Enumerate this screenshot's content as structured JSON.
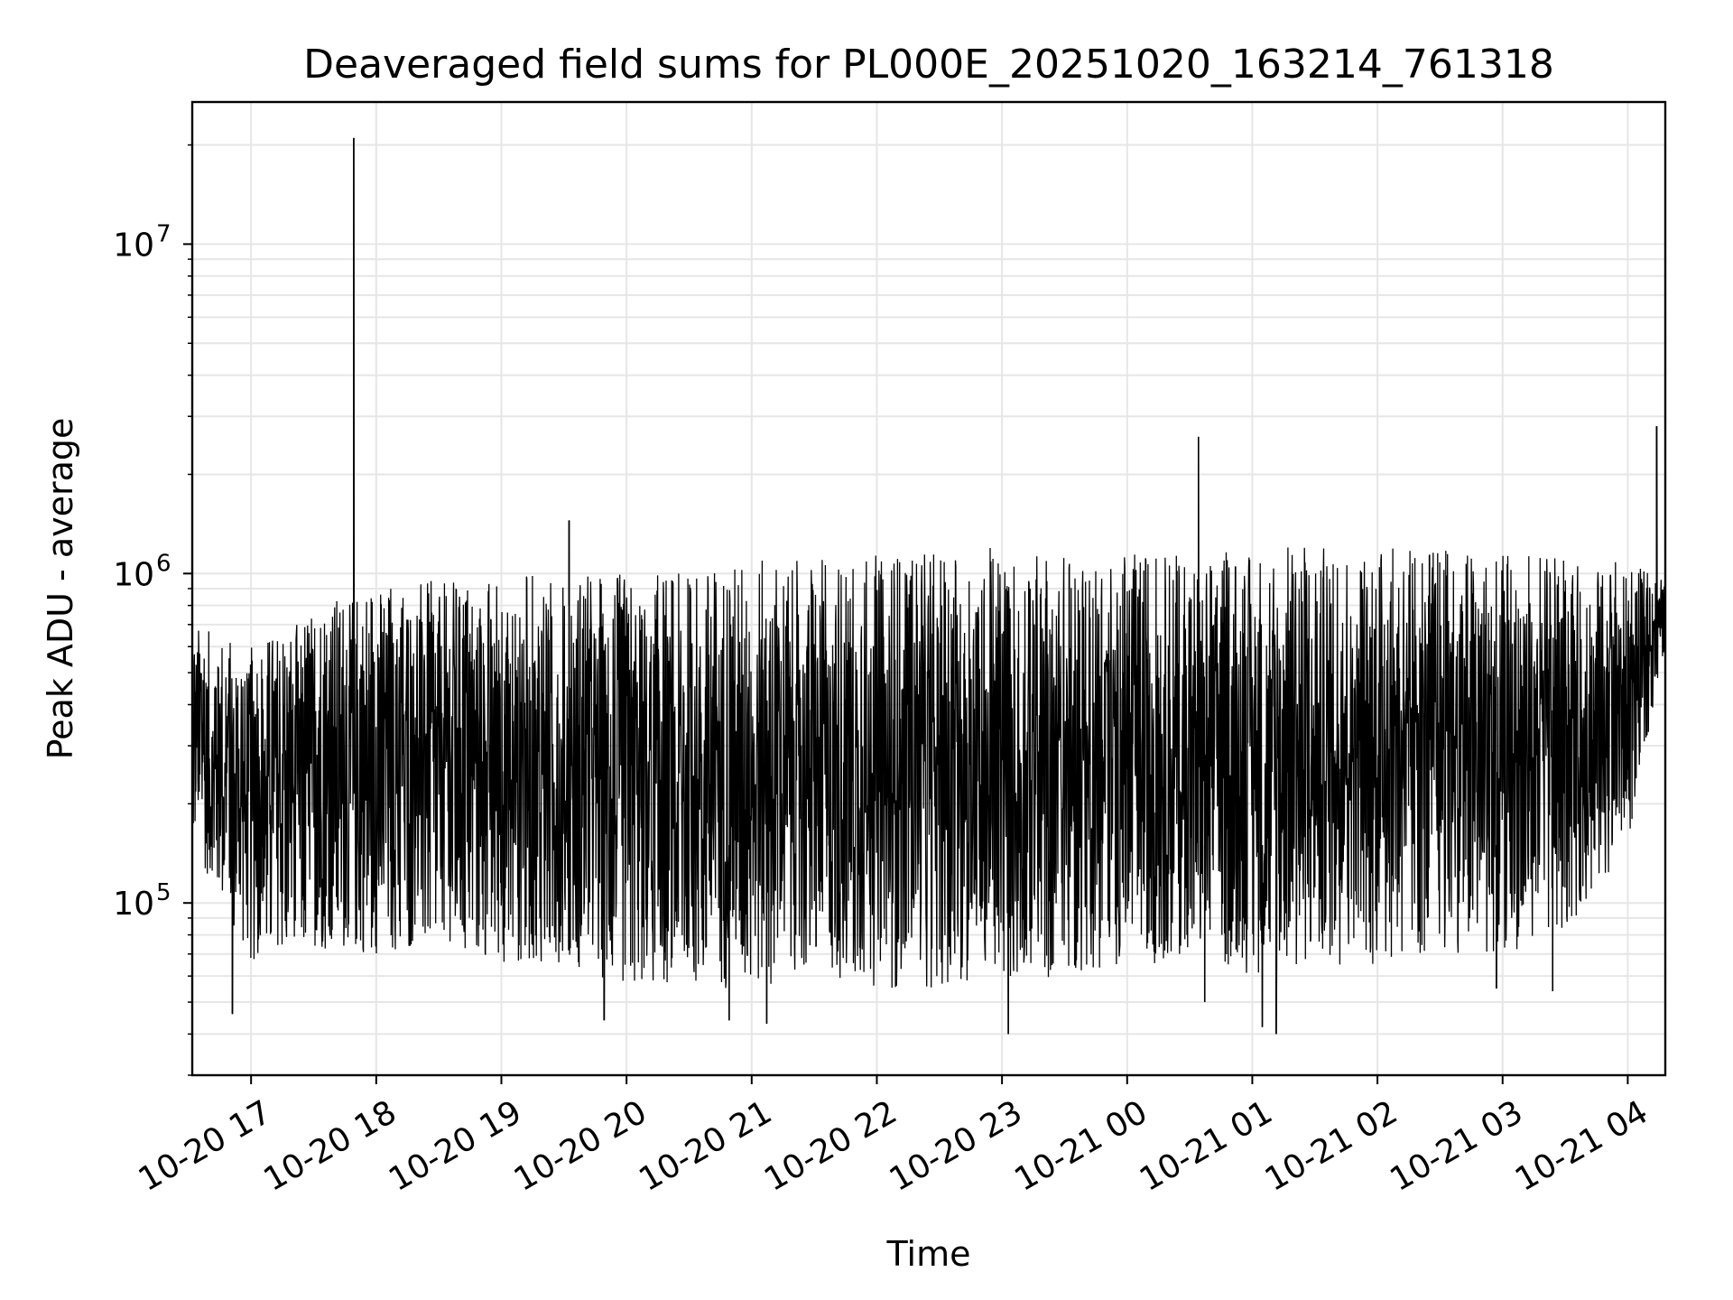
{
  "chart_data": {
    "type": "line",
    "title": "Deaveraged field sums for PL000E_20251020_163214_761318",
    "xlabel": "Time",
    "ylabel": "Peak ADU - average",
    "yscale": "log",
    "ylim": [
      30000,
      27000000
    ],
    "xlim_hours": [
      16.53,
      28.3
    ],
    "grid": true,
    "line_color": "#000000",
    "grid_color": "#e6e6e6",
    "x_ticks": [
      {
        "label": "10-20 17",
        "hour": 17
      },
      {
        "label": "10-20 18",
        "hour": 18
      },
      {
        "label": "10-20 19",
        "hour": 19
      },
      {
        "label": "10-20 20",
        "hour": 20
      },
      {
        "label": "10-20 21",
        "hour": 21
      },
      {
        "label": "10-20 22",
        "hour": 22
      },
      {
        "label": "10-20 23",
        "hour": 23
      },
      {
        "label": "10-21 00",
        "hour": 24
      },
      {
        "label": "10-21 01",
        "hour": 25
      },
      {
        "label": "10-21 02",
        "hour": 26
      },
      {
        "label": "10-21 03",
        "hour": 27
      },
      {
        "label": "10-21 04",
        "hour": 28
      }
    ],
    "y_ticks": [
      {
        "base": "10",
        "exp": "5",
        "value": 100000
      },
      {
        "base": "10",
        "exp": "6",
        "value": 1000000
      },
      {
        "base": "10",
        "exp": "7",
        "value": 10000000
      }
    ],
    "series": [
      {
        "name": "field sums",
        "envelope": [
          {
            "hour": 16.53,
            "low": 150000,
            "high": 700000
          },
          {
            "hour": 17.0,
            "low": 65000,
            "high": 600000
          },
          {
            "hour": 17.5,
            "low": 70000,
            "high": 800000
          },
          {
            "hour": 18.0,
            "low": 70000,
            "high": 950000
          },
          {
            "hour": 18.5,
            "low": 70000,
            "high": 950000
          },
          {
            "hour": 19.0,
            "low": 65000,
            "high": 1000000
          },
          {
            "hour": 19.5,
            "low": 65000,
            "high": 1000000
          },
          {
            "hour": 20.0,
            "low": 55000,
            "high": 1000000
          },
          {
            "hour": 20.5,
            "low": 55000,
            "high": 1000000
          },
          {
            "hour": 21.0,
            "low": 55000,
            "high": 1100000
          },
          {
            "hour": 21.5,
            "low": 60000,
            "high": 1100000
          },
          {
            "hour": 22.0,
            "low": 55000,
            "high": 1150000
          },
          {
            "hour": 22.5,
            "low": 55000,
            "high": 1200000
          },
          {
            "hour": 23.0,
            "low": 55000,
            "high": 1200000
          },
          {
            "hour": 23.5,
            "low": 60000,
            "high": 1150000
          },
          {
            "hour": 24.0,
            "low": 65000,
            "high": 1150000
          },
          {
            "hour": 24.5,
            "low": 65000,
            "high": 1150000
          },
          {
            "hour": 25.0,
            "low": 60000,
            "high": 1200000
          },
          {
            "hour": 25.5,
            "low": 65000,
            "high": 1250000
          },
          {
            "hour": 26.0,
            "low": 65000,
            "high": 1200000
          },
          {
            "hour": 26.5,
            "low": 70000,
            "high": 1200000
          },
          {
            "hour": 27.0,
            "low": 70000,
            "high": 1150000
          },
          {
            "hour": 27.5,
            "low": 80000,
            "high": 1150000
          },
          {
            "hour": 28.0,
            "low": 150000,
            "high": 1100000
          },
          {
            "hour": 28.3,
            "low": 600000,
            "high": 950000
          }
        ],
        "spikes": [
          {
            "hour": 17.82,
            "value": 21000000
          },
          {
            "hour": 19.54,
            "value": 1450000
          },
          {
            "hour": 24.57,
            "value": 2600000
          },
          {
            "hour": 28.23,
            "value": 2800000
          }
        ],
        "dips": [
          {
            "hour": 16.85,
            "value": 46000
          },
          {
            "hour": 19.82,
            "value": 44000
          },
          {
            "hour": 20.82,
            "value": 44000
          },
          {
            "hour": 21.12,
            "value": 43000
          },
          {
            "hour": 23.05,
            "value": 40000
          },
          {
            "hour": 24.62,
            "value": 50000
          },
          {
            "hour": 25.08,
            "value": 42000
          },
          {
            "hour": 25.19,
            "value": 40000
          },
          {
            "hour": 26.95,
            "value": 55000
          },
          {
            "hour": 27.4,
            "value": 54000
          }
        ]
      }
    ]
  }
}
